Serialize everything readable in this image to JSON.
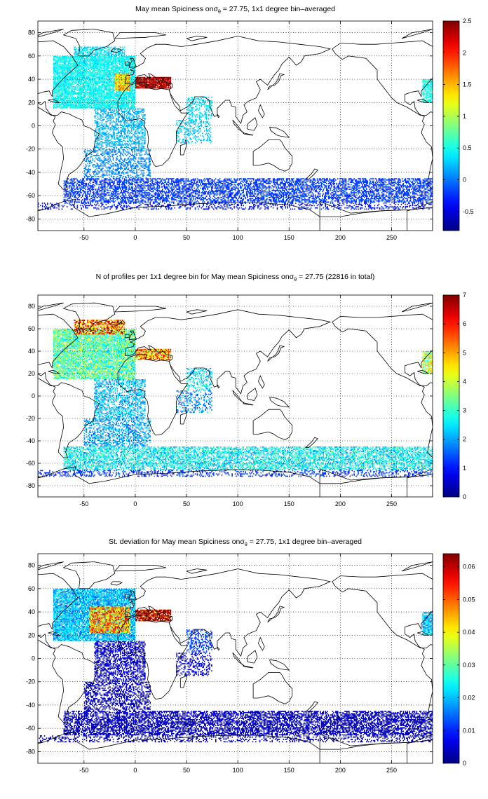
{
  "chart_data": [
    {
      "type": "heatmap",
      "title": {
        "pre": "May mean Spiciness on",
        "sym": "σ",
        "sub": "θ",
        "post": " = 27.75, 1x1 degree bin–averaged"
      },
      "xlim": [
        -95,
        290
      ],
      "ylim": [
        -90,
        90
      ],
      "x_ticks": [
        -50,
        0,
        50,
        100,
        150,
        200,
        250
      ],
      "y_ticks": [
        -80,
        -60,
        -40,
        -20,
        0,
        20,
        40,
        60,
        80
      ],
      "grid": true,
      "colorbar": {
        "min": -0.8,
        "max": 2.5,
        "ticks": [
          "-0.5",
          "0",
          "0.5",
          "1",
          "1.5",
          "2",
          "2.5"
        ],
        "tick_values": [
          -0.5,
          0,
          0.5,
          1,
          1.5,
          2,
          2.5
        ]
      },
      "colormap": "jet",
      "regions": [
        {
          "name": "North Atlantic",
          "lon": [
            -80,
            0
          ],
          "lat": [
            15,
            60
          ],
          "value": 0.45,
          "density": 0.85
        },
        {
          "name": "Subpolar North Atlantic",
          "lon": [
            -60,
            -10
          ],
          "lat": [
            60,
            68
          ],
          "value": 0.35,
          "density": 0.6
        },
        {
          "name": "Mediterranean outflow",
          "lon": [
            -20,
            -5
          ],
          "lat": [
            30,
            45
          ],
          "value": 1.4,
          "density": 0.95
        },
        {
          "name": "Mediterranean Sea",
          "lon": [
            0,
            35
          ],
          "lat": [
            32,
            42
          ],
          "value": 2.5,
          "density": 0.95
        },
        {
          "name": "Tropical Atlantic",
          "lon": [
            -40,
            10
          ],
          "lat": [
            -20,
            15
          ],
          "value": 0.2,
          "density": 0.45
        },
        {
          "name": "South Atlantic",
          "lon": [
            -50,
            15
          ],
          "lat": [
            -45,
            -20
          ],
          "value": 0.05,
          "density": 0.4
        },
        {
          "name": "Arabian Sea",
          "lon": [
            50,
            75
          ],
          "lat": [
            5,
            25
          ],
          "value": 0.35,
          "density": 0.4
        },
        {
          "name": "Western Indian Ocean",
          "lon": [
            40,
            75
          ],
          "lat": [
            -15,
            5
          ],
          "value": 0.25,
          "density": 0.3
        },
        {
          "name": "Southern Ocean",
          "lon": [
            -70,
            290
          ],
          "lat": [
            -66,
            -45
          ],
          "value": -0.2,
          "density": 0.55
        },
        {
          "name": "Antarctic margin",
          "lon": [
            -95,
            290
          ],
          "lat": [
            -72,
            -66
          ],
          "value": -0.35,
          "density": 0.3
        },
        {
          "name": "Western Pacific edge",
          "lon": [
            280,
            290
          ],
          "lat": [
            20,
            40
          ],
          "value": 0.5,
          "density": 0.8
        }
      ]
    },
    {
      "type": "heatmap",
      "title": {
        "pre": "N of profiles per 1x1 degree bin for May mean Spiciness on",
        "sym": "σ",
        "sub": "θ",
        "post": " = 27.75 (22816 in total)"
      },
      "xlim": [
        -95,
        290
      ],
      "ylim": [
        -90,
        90
      ],
      "x_ticks": [
        -50,
        0,
        50,
        100,
        150,
        200,
        250
      ],
      "y_ticks": [
        -80,
        -60,
        -40,
        -20,
        0,
        20,
        40,
        60,
        80
      ],
      "grid": true,
      "colorbar": {
        "min": 0,
        "max": 7,
        "ticks": [
          "0",
          "1",
          "2",
          "3",
          "4",
          "5",
          "6",
          "7"
        ],
        "tick_values": [
          0,
          1,
          2,
          3,
          4,
          5,
          6,
          7
        ]
      },
      "colormap": "jet",
      "regions": [
        {
          "name": "North Atlantic",
          "lon": [
            -80,
            0
          ],
          "lat": [
            15,
            60
          ],
          "value": 3.2,
          "density": 0.85
        },
        {
          "name": "Subpolar North Atlantic",
          "lon": [
            -60,
            -10
          ],
          "lat": [
            55,
            68
          ],
          "value": 5.5,
          "density": 0.7
        },
        {
          "name": "Mediterranean Sea",
          "lon": [
            0,
            35
          ],
          "lat": [
            32,
            42
          ],
          "value": 5.0,
          "density": 0.9
        },
        {
          "name": "Tropical Atlantic",
          "lon": [
            -40,
            10
          ],
          "lat": [
            -20,
            15
          ],
          "value": 2.2,
          "density": 0.5
        },
        {
          "name": "South Atlantic",
          "lon": [
            -50,
            15
          ],
          "lat": [
            -45,
            -20
          ],
          "value": 2.0,
          "density": 0.45
        },
        {
          "name": "Arabian Sea",
          "lon": [
            50,
            75
          ],
          "lat": [
            5,
            25
          ],
          "value": 2.5,
          "density": 0.4
        },
        {
          "name": "Western Indian Ocean",
          "lon": [
            40,
            75
          ],
          "lat": [
            -15,
            5
          ],
          "value": 1.8,
          "density": 0.3
        },
        {
          "name": "Southern Ocean",
          "lon": [
            -70,
            290
          ],
          "lat": [
            -66,
            -45
          ],
          "value": 2.6,
          "density": 0.6
        },
        {
          "name": "Antarctic margin",
          "lon": [
            -95,
            290
          ],
          "lat": [
            -72,
            -66
          ],
          "value": 1.2,
          "density": 0.3
        },
        {
          "name": "Western Pacific edge",
          "lon": [
            280,
            290
          ],
          "lat": [
            20,
            40
          ],
          "value": 4.0,
          "density": 0.8
        }
      ]
    },
    {
      "type": "heatmap",
      "title": {
        "pre": "St. deviation for May mean Spiciness on",
        "sym": "σ",
        "sub": "θ",
        "post": " = 27.75, 1x1 degree bin–averaged"
      },
      "xlim": [
        -95,
        290
      ],
      "ylim": [
        -90,
        90
      ],
      "x_ticks": [
        -50,
        0,
        50,
        100,
        150,
        200,
        250
      ],
      "y_ticks": [
        -80,
        -60,
        -40,
        -20,
        0,
        20,
        40,
        60,
        80
      ],
      "grid": true,
      "colorbar": {
        "min": 0,
        "max": 0.064,
        "ticks": [
          "0",
          "0.01",
          "0.02",
          "0.03",
          "0.04",
          "0.05",
          "0.06"
        ],
        "tick_values": [
          0,
          0.01,
          0.02,
          0.03,
          0.04,
          0.05,
          0.06
        ]
      },
      "colormap": "jet",
      "regions": [
        {
          "name": "North Atlantic",
          "lon": [
            -80,
            0
          ],
          "lat": [
            15,
            60
          ],
          "value": 0.02,
          "density": 0.85
        },
        {
          "name": "Mid-latitude North Atlantic",
          "lon": [
            -45,
            -5
          ],
          "lat": [
            22,
            45
          ],
          "value": 0.045,
          "density": 0.9
        },
        {
          "name": "Mediterranean Sea",
          "lon": [
            0,
            35
          ],
          "lat": [
            32,
            42
          ],
          "value": 0.062,
          "density": 0.9
        },
        {
          "name": "Tropical Atlantic",
          "lon": [
            -40,
            10
          ],
          "lat": [
            -20,
            15
          ],
          "value": 0.005,
          "density": 0.5
        },
        {
          "name": "South Atlantic",
          "lon": [
            -50,
            15
          ],
          "lat": [
            -45,
            -20
          ],
          "value": 0.004,
          "density": 0.45
        },
        {
          "name": "Arabian Sea",
          "lon": [
            50,
            75
          ],
          "lat": [
            5,
            25
          ],
          "value": 0.012,
          "density": 0.4
        },
        {
          "name": "Western Indian Ocean",
          "lon": [
            40,
            75
          ],
          "lat": [
            -15,
            5
          ],
          "value": 0.006,
          "density": 0.3
        },
        {
          "name": "Southern Ocean",
          "lon": [
            -70,
            290
          ],
          "lat": [
            -66,
            -45
          ],
          "value": 0.004,
          "density": 0.6
        },
        {
          "name": "Antarctic margin",
          "lon": [
            -95,
            290
          ],
          "lat": [
            -72,
            -66
          ],
          "value": 0.003,
          "density": 0.3
        },
        {
          "name": "Western Pacific edge",
          "lon": [
            280,
            290
          ],
          "lat": [
            20,
            40
          ],
          "value": 0.02,
          "density": 0.8
        }
      ]
    }
  ]
}
